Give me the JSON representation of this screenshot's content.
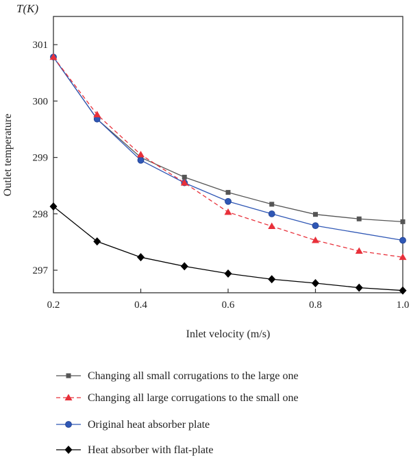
{
  "chart_data": {
    "type": "line",
    "title": "",
    "xlabel": "Inlet velocity (m/s)",
    "ylabel": "Outlet temperature",
    "yunit_label": "T(K)",
    "xlim": [
      0.2,
      1.0
    ],
    "ylim": [
      296.6,
      301.5
    ],
    "xticks": [
      0.2,
      0.4,
      0.6,
      0.8,
      1.0
    ],
    "xtick_labels": [
      "0.2",
      "0.4",
      "0.6",
      "0.8",
      "1.0"
    ],
    "yticks": [
      297,
      298,
      299,
      300,
      301
    ],
    "ytick_labels": [
      "297",
      "298",
      "299",
      "300",
      "301"
    ],
    "grid": false,
    "legend_position": "bottom",
    "x": [
      0.2,
      0.3,
      0.4,
      0.5,
      0.6,
      0.7,
      0.8,
      0.9,
      1.0
    ],
    "series": [
      {
        "name": "Changing all small corrugations to the large one",
        "color": "#555555",
        "marker": "square",
        "dash": "solid",
        "values": [
          300.78,
          299.68,
          299.0,
          298.65,
          298.38,
          298.17,
          297.99,
          297.91,
          297.86
        ]
      },
      {
        "name": "Changing all large corrugations to the small one",
        "color": "#e8303a",
        "marker": "triangle",
        "dash": "dashed",
        "values": [
          300.78,
          299.76,
          299.05,
          298.55,
          298.03,
          297.78,
          297.53,
          297.34,
          297.23
        ]
      },
      {
        "name": "Original heat absorber plate",
        "color": "#2f57b5",
        "marker": "circle",
        "dash": "solid",
        "values": [
          300.78,
          299.68,
          298.95,
          298.55,
          298.22,
          298.0,
          297.79,
          null,
          297.53
        ]
      },
      {
        "name": "Heat absorber with flat-plate",
        "color": "#000000",
        "marker": "diamond",
        "dash": "solid",
        "values": [
          298.13,
          297.51,
          297.23,
          297.07,
          296.94,
          296.84,
          296.77,
          296.69,
          296.64
        ]
      }
    ]
  }
}
